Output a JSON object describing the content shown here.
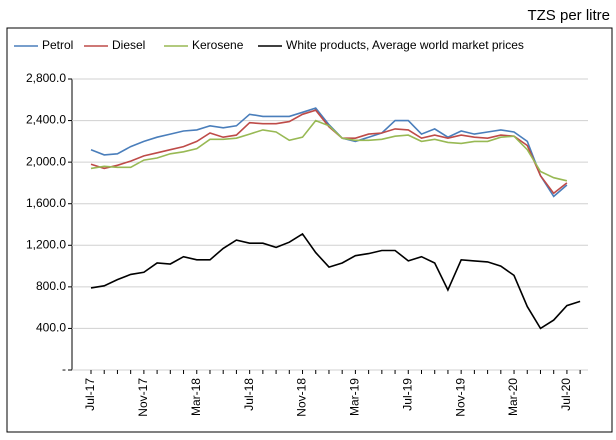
{
  "chart_data": {
    "type": "line",
    "title": "TZS per litre",
    "categories": [
      "Jul-17",
      null,
      null,
      null,
      "Nov-17",
      null,
      null,
      null,
      "Mar-18",
      null,
      null,
      null,
      "Jul-18",
      null,
      null,
      null,
      "Nov-18",
      null,
      null,
      null,
      "Mar-19",
      null,
      null,
      null,
      "Jul-19",
      null,
      null,
      null,
      "Nov-19",
      null,
      null,
      null,
      "Mar-20",
      null,
      null,
      null,
      "Jul-20",
      null
    ],
    "series": [
      {
        "name": "Petrol",
        "color": "#4a7ebb",
        "values": [
          2120,
          2070,
          2080,
          2150,
          2200,
          2240,
          2270,
          2300,
          2310,
          2350,
          2330,
          2350,
          2460,
          2440,
          2440,
          2440,
          2480,
          2520,
          2360,
          2230,
          2200,
          2240,
          2280,
          2400,
          2400,
          2270,
          2320,
          2240,
          2300,
          2270,
          2290,
          2310,
          2290,
          2200,
          1870,
          1670,
          1780,
          null
        ]
      },
      {
        "name": "Diesel",
        "color": "#be4b48",
        "values": [
          1980,
          1940,
          1970,
          2010,
          2060,
          2090,
          2120,
          2150,
          2200,
          2280,
          2240,
          2260,
          2380,
          2370,
          2370,
          2390,
          2460,
          2500,
          2340,
          2230,
          2230,
          2270,
          2280,
          2320,
          2310,
          2230,
          2260,
          2230,
          2260,
          2240,
          2230,
          2260,
          2250,
          2160,
          1870,
          1700,
          1800,
          null
        ]
      },
      {
        "name": "Kerosene",
        "color": "#98b954",
        "values": [
          1940,
          1960,
          1950,
          1950,
          2020,
          2040,
          2080,
          2100,
          2130,
          2220,
          2220,
          2230,
          2270,
          2310,
          2290,
          2210,
          2240,
          2400,
          2350,
          2230,
          2210,
          2210,
          2220,
          2250,
          2260,
          2200,
          2220,
          2190,
          2180,
          2200,
          2200,
          2240,
          2250,
          2120,
          1910,
          1850,
          1820,
          null
        ]
      },
      {
        "name": "White products, Average world market prices",
        "color": "#000000",
        "values": [
          790,
          810,
          870,
          920,
          940,
          1030,
          1020,
          1090,
          1060,
          1060,
          1170,
          1250,
          1220,
          1220,
          1180,
          1230,
          1310,
          1130,
          990,
          1030,
          1100,
          1120,
          1150,
          1150,
          1050,
          1090,
          1030,
          770,
          1060,
          1050,
          1040,
          1000,
          910,
          610,
          400,
          480,
          620,
          660
        ]
      }
    ],
    "ylim": [
      0,
      2800
    ],
    "yticks": [
      {
        "value": 0,
        "label": "-"
      },
      {
        "value": 400,
        "label": "400.0"
      },
      {
        "value": 800,
        "label": "800.0"
      },
      {
        "value": 1200,
        "label": "1,200.0"
      },
      {
        "value": 1600,
        "label": "1,600.0"
      },
      {
        "value": 2000,
        "label": "2,000.0"
      },
      {
        "value": 2400,
        "label": "2,400.0"
      },
      {
        "value": 2800,
        "label": "2,800.0"
      }
    ],
    "grid": true,
    "legend": "top"
  }
}
